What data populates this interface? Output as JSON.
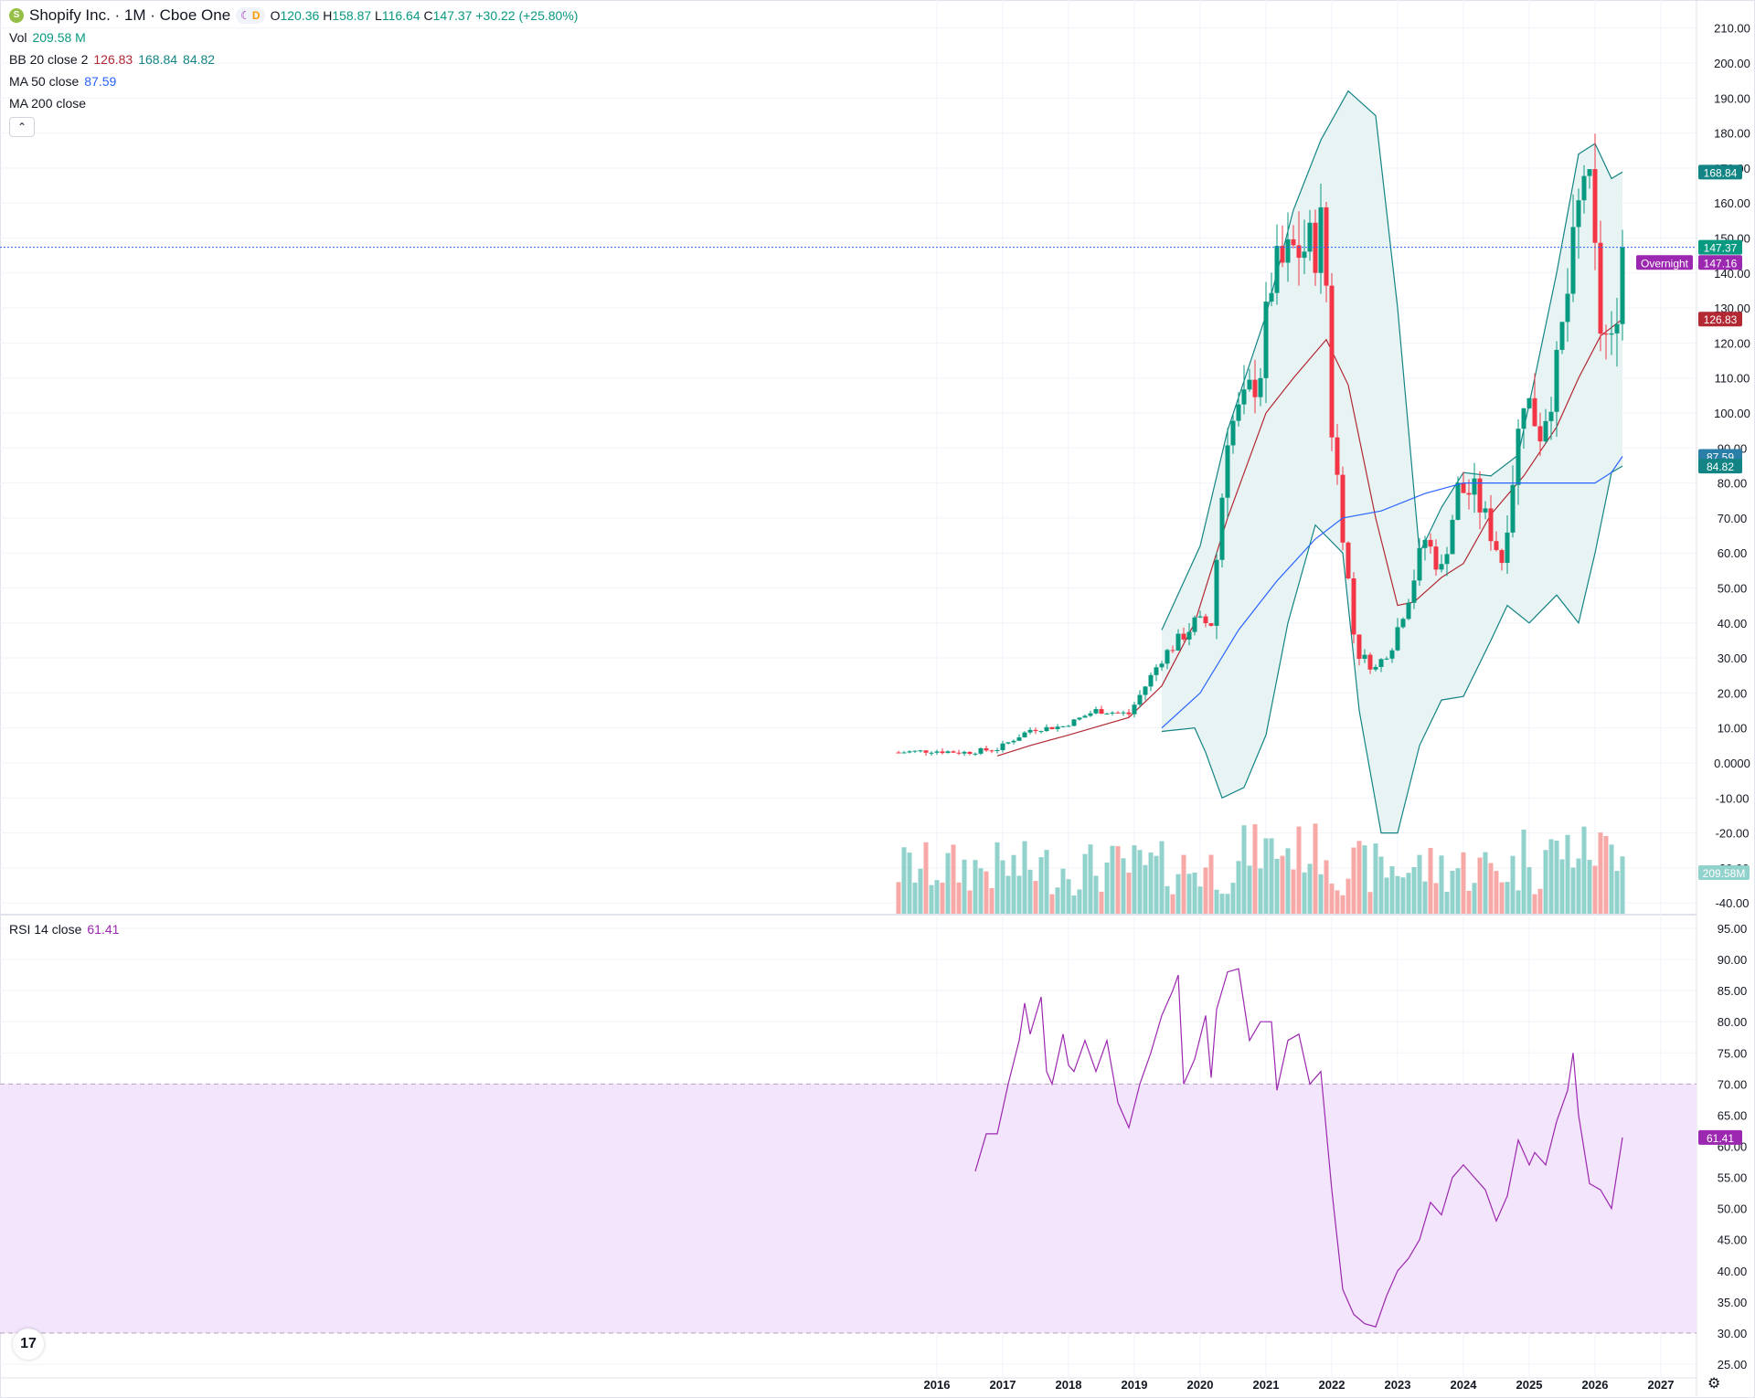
{
  "header": {
    "symbol_icon": "shopify-bag-icon",
    "title": "Shopify Inc. · 1M · Cboe One",
    "session_icon": "moon-icon",
    "delayed_badge": "D",
    "ohlc": {
      "o_label": "O",
      "o": "120.36",
      "h_label": "H",
      "h": "158.87",
      "l_label": "L",
      "l": "116.64",
      "c_label": "C",
      "c": "147.37",
      "change": "+30.22 (+25.80%)"
    }
  },
  "indicators": {
    "vol": {
      "label": "Vol",
      "value": "209.58 M"
    },
    "bb": {
      "label": "BB 20 close 2",
      "basis": "126.83",
      "upper": "168.84",
      "lower": "84.82"
    },
    "ma50": {
      "label": "MA 50 close",
      "value": "87.59"
    },
    "ma200": {
      "label": "MA 200 close"
    },
    "rsi": {
      "label": "RSI 14 close",
      "value": "61.41"
    }
  },
  "colors": {
    "up": "#089981",
    "down": "#f23645",
    "up_vol": "#92d2cc",
    "down_vol": "#f7a9a7",
    "bb_basis": "#b22833",
    "bb_band": "#138484",
    "bb_fill": "#e8f4f4",
    "ma50": "#2962ff",
    "rsi": "#9c27b0",
    "rsi_band": "#f3e5fc",
    "price_line": "#2962ff"
  },
  "chart_data": [
    {
      "type": "candlestick",
      "title": "Shopify Inc. · 1M · Cboe One",
      "y_axis_ticks": [
        "210.00",
        "200.00",
        "190.00",
        "180.00",
        "170.00",
        "160.00",
        "150.00",
        "140.00",
        "130.00",
        "120.00",
        "110.00",
        "100.00",
        "90.00",
        "80.00",
        "70.00",
        "60.00",
        "50.00",
        "40.00",
        "30.00",
        "20.00",
        "10.00",
        "0.0000",
        "-10.00",
        "-20.00",
        "-30.00",
        "-40.00"
      ],
      "ylim": [
        -40,
        210
      ],
      "x_axis_ticks": [
        "2016",
        "2017",
        "2018",
        "2019",
        "2020",
        "2021",
        "2022",
        "2023",
        "2024",
        "2025",
        "2026",
        "2027"
      ],
      "price_labels": {
        "bb_upper": "168.84",
        "last": "147.37",
        "overnight_label": "Overnight",
        "overnight": "147.16",
        "bb_basis": "126.83",
        "ma50": "87.59",
        "bb_lower": "84.82",
        "volume": "209.58M"
      },
      "close_path": [
        [
          "2015-06",
          3.0
        ],
        [
          "2015-12",
          3.5
        ],
        [
          "2016-06",
          3.0
        ],
        [
          "2016-12",
          4.0
        ],
        [
          "2017-06",
          9.5
        ],
        [
          "2017-12",
          10.5
        ],
        [
          "2018-06",
          15.0
        ],
        [
          "2018-12",
          14.0
        ],
        [
          "2019-06",
          30.0
        ],
        [
          "2019-12",
          40.0
        ],
        [
          "2020-03",
          40.0
        ],
        [
          "2020-06",
          95.0
        ],
        [
          "2020-09",
          102.0
        ],
        [
          "2020-12",
          113.0
        ],
        [
          "2021-02",
          138.0
        ],
        [
          "2021-06",
          146.0
        ],
        [
          "2021-10",
          148.0
        ],
        [
          "2021-11",
          153.0
        ],
        [
          "2021-12",
          137.0
        ],
        [
          "2022-01",
          96.0
        ],
        [
          "2022-03",
          67.0
        ],
        [
          "2022-05",
          37.0
        ],
        [
          "2022-06",
          31.0
        ],
        [
          "2022-09",
          27.0
        ],
        [
          "2022-12",
          34.0
        ],
        [
          "2023-03",
          48.0
        ],
        [
          "2023-06",
          64.0
        ],
        [
          "2023-09",
          55.0
        ],
        [
          "2023-12",
          78.0
        ],
        [
          "2024-03",
          77.0
        ],
        [
          "2024-06",
          66.0
        ],
        [
          "2024-08",
          58.0
        ],
        [
          "2024-12",
          106.0
        ],
        [
          "2025-03",
          95.0
        ],
        [
          "2025-06",
          112.0
        ],
        [
          "2025-09",
          145.0
        ],
        [
          "2025-11",
          170.0
        ],
        [
          "2025-12",
          161.0
        ],
        [
          "2026-02",
          125.0
        ],
        [
          "2026-04",
          118.0
        ],
        [
          "2026-06",
          147.37
        ]
      ],
      "bb_upper_path": [
        [
          "2019-06",
          38.0
        ],
        [
          "2020-01",
          62.0
        ],
        [
          "2020-06",
          95.0
        ],
        [
          "2021-01",
          128.0
        ],
        [
          "2021-06",
          158.0
        ],
        [
          "2021-11",
          178.0
        ],
        [
          "2022-04",
          192.0
        ],
        [
          "2022-09",
          185.0
        ],
        [
          "2023-01",
          130.0
        ],
        [
          "2023-05",
          60.0
        ],
        [
          "2023-09",
          73.0
        ],
        [
          "2024-01",
          83.0
        ],
        [
          "2024-06",
          82.0
        ],
        [
          "2024-11",
          88.0
        ],
        [
          "2025-02",
          110.0
        ],
        [
          "2025-06",
          140.0
        ],
        [
          "2025-10",
          174.0
        ],
        [
          "2026-01",
          177.0
        ],
        [
          "2026-04",
          167.0
        ],
        [
          "2026-06",
          168.84
        ]
      ],
      "bb_lower_path": [
        [
          "2019-06",
          9.0
        ],
        [
          "2019-12",
          10.0
        ],
        [
          "2020-02",
          3.0
        ],
        [
          "2020-05",
          -10.0
        ],
        [
          "2020-09",
          -7.0
        ],
        [
          "2021-01",
          8.0
        ],
        [
          "2021-05",
          40.0
        ],
        [
          "2021-10",
          68.0
        ],
        [
          "2022-03",
          60.0
        ],
        [
          "2022-06",
          15.0
        ],
        [
          "2022-10",
          -20.0
        ],
        [
          "2023-01",
          -20.0
        ],
        [
          "2023-05",
          5.0
        ],
        [
          "2023-09",
          18.0
        ],
        [
          "2024-01",
          19.0
        ],
        [
          "2024-06",
          35.0
        ],
        [
          "2024-09",
          45.0
        ],
        [
          "2025-01",
          40.0
        ],
        [
          "2025-06",
          48.0
        ],
        [
          "2025-10",
          40.0
        ],
        [
          "2026-01",
          60.0
        ],
        [
          "2026-04",
          83.0
        ],
        [
          "2026-06",
          84.82
        ]
      ],
      "bb_basis_path": [
        [
          "2016-12",
          2.0
        ],
        [
          "2017-06",
          5.0
        ],
        [
          "2018-01",
          8.0
        ],
        [
          "2018-12",
          13.0
        ],
        [
          "2019-06",
          22.0
        ],
        [
          "2019-12",
          40.0
        ],
        [
          "2020-06",
          70.0
        ],
        [
          "2021-01",
          100.0
        ],
        [
          "2021-06",
          110.0
        ],
        [
          "2021-12",
          121.0
        ],
        [
          "2022-04",
          108.0
        ],
        [
          "2022-09",
          70.0
        ],
        [
          "2023-01",
          45.0
        ],
        [
          "2023-04",
          46.0
        ],
        [
          "2023-09",
          53.0
        ],
        [
          "2024-01",
          57.0
        ],
        [
          "2024-06",
          71.0
        ],
        [
          "2024-12",
          82.0
        ],
        [
          "2025-06",
          96.0
        ],
        [
          "2025-10",
          110.0
        ],
        [
          "2026-02",
          122.0
        ],
        [
          "2026-06",
          126.83
        ]
      ],
      "ma50_path": [
        [
          "2019-06",
          10.0
        ],
        [
          "2020-01",
          20.0
        ],
        [
          "2020-08",
          38.0
        ],
        [
          "2021-03",
          52.0
        ],
        [
          "2021-10",
          64.0
        ],
        [
          "2022-03",
          70.0
        ],
        [
          "2022-10",
          72.0
        ],
        [
          "2023-06",
          77.0
        ],
        [
          "2024-01",
          80.0
        ],
        [
          "2024-06",
          80.0
        ],
        [
          "2025-01",
          80.0
        ],
        [
          "2025-06",
          80.0
        ],
        [
          "2026-01",
          80.0
        ],
        [
          "2026-04",
          83.0
        ],
        [
          "2026-06",
          87.59
        ]
      ]
    },
    {
      "type": "line",
      "title": "RSI 14 close",
      "y_axis_ticks": [
        "95.00",
        "90.00",
        "85.00",
        "80.00",
        "75.00",
        "70.00",
        "65.00",
        "60.00",
        "55.00",
        "50.00",
        "45.00",
        "40.00",
        "35.00",
        "30.00",
        "25.00"
      ],
      "ylim": [
        25,
        95
      ],
      "bands": [
        30,
        70
      ],
      "last_label": "61.41",
      "series": [
        [
          "2016-08",
          56.0
        ],
        [
          "2016-10",
          62.0
        ],
        [
          "2016-12",
          62.0
        ],
        [
          "2017-02",
          70.0
        ],
        [
          "2017-04",
          77.0
        ],
        [
          "2017-05",
          83.0
        ],
        [
          "2017-06",
          78.0
        ],
        [
          "2017-08",
          84.0
        ],
        [
          "2017-09",
          72.0
        ],
        [
          "2017-10",
          70.0
        ],
        [
          "2017-12",
          78.0
        ],
        [
          "2018-01",
          73.0
        ],
        [
          "2018-02",
          72.0
        ],
        [
          "2018-04",
          77.0
        ],
        [
          "2018-06",
          72.0
        ],
        [
          "2018-08",
          77.0
        ],
        [
          "2018-10",
          67.0
        ],
        [
          "2018-12",
          63.0
        ],
        [
          "2019-02",
          70.0
        ],
        [
          "2019-04",
          75.0
        ],
        [
          "2019-06",
          81.0
        ],
        [
          "2019-08",
          85.0
        ],
        [
          "2019-09",
          87.5
        ],
        [
          "2019-10",
          70.0
        ],
        [
          "2019-12",
          74.0
        ],
        [
          "2020-02",
          81.0
        ],
        [
          "2020-03",
          71.0
        ],
        [
          "2020-04",
          82.0
        ],
        [
          "2020-06",
          88.0
        ],
        [
          "2020-08",
          88.5
        ],
        [
          "2020-10",
          77.0
        ],
        [
          "2020-12",
          80.0
        ],
        [
          "2021-02",
          80.0
        ],
        [
          "2021-03",
          69.0
        ],
        [
          "2021-05",
          77.0
        ],
        [
          "2021-07",
          78.0
        ],
        [
          "2021-09",
          70.0
        ],
        [
          "2021-11",
          72.0
        ],
        [
          "2022-01",
          53.0
        ],
        [
          "2022-03",
          37.0
        ],
        [
          "2022-05",
          33.0
        ],
        [
          "2022-07",
          31.5
        ],
        [
          "2022-09",
          31.0
        ],
        [
          "2022-11",
          36.0
        ],
        [
          "2023-01",
          40.0
        ],
        [
          "2023-03",
          42.0
        ],
        [
          "2023-05",
          45.0
        ],
        [
          "2023-07",
          51.0
        ],
        [
          "2023-09",
          49.0
        ],
        [
          "2023-11",
          55.0
        ],
        [
          "2024-01",
          57.0
        ],
        [
          "2024-03",
          55.0
        ],
        [
          "2024-05",
          53.0
        ],
        [
          "2024-07",
          48.0
        ],
        [
          "2024-09",
          52.0
        ],
        [
          "2024-11",
          61.0
        ],
        [
          "2025-01",
          57.0
        ],
        [
          "2025-02",
          59.0
        ],
        [
          "2025-04",
          57.0
        ],
        [
          "2025-06",
          64.0
        ],
        [
          "2025-08",
          69.0
        ],
        [
          "2025-09",
          75.0
        ],
        [
          "2025-10",
          65.0
        ],
        [
          "2025-12",
          54.0
        ],
        [
          "2026-02",
          53.0
        ],
        [
          "2026-04",
          50.0
        ],
        [
          "2026-06",
          61.41
        ]
      ]
    }
  ]
}
